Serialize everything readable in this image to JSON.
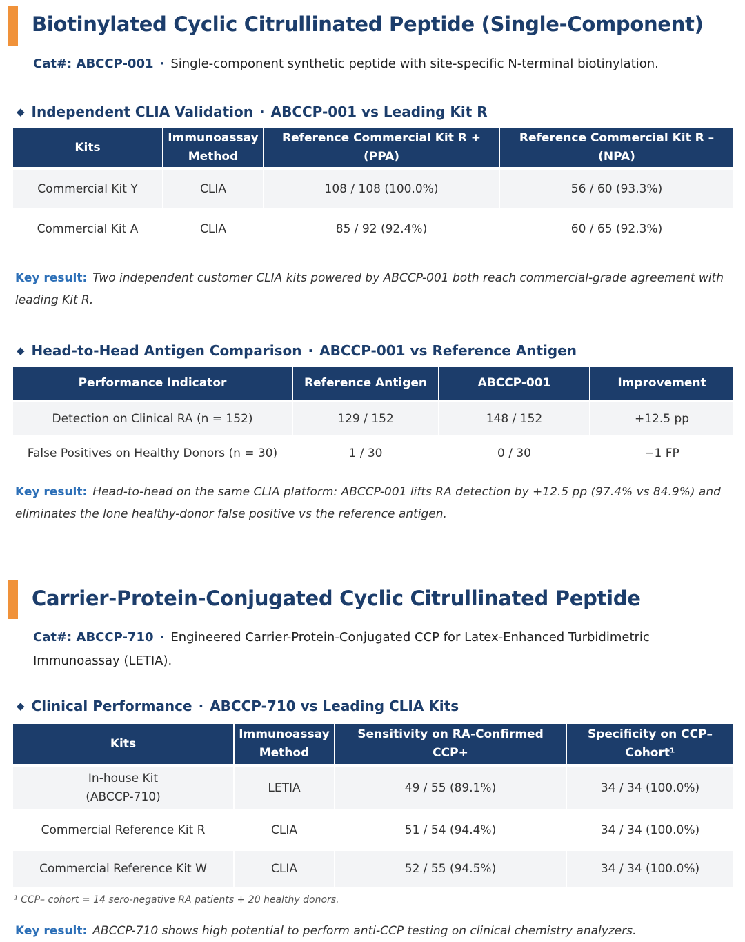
{
  "section1": {
    "title": "Biotinylated Cyclic Citrullinated Peptide (Single-Component)",
    "cat_label": "Cat#: ABCCP-001",
    "cat_desc": "Single-component synthetic peptide with site-specific N-terminal biotinylation.",
    "sep": "·",
    "table1": {
      "heading_a": "Independent CLIA Validation",
      "heading_b": "ABCCP-001 vs Leading Kit R",
      "headers": [
        "Kits",
        "Immunoassay Method",
        "Reference Commercial Kit R + (PPA)",
        "Reference Commercial Kit R – (NPA)"
      ],
      "rows": [
        [
          "Commercial Kit Y",
          "CLIA",
          "108 / 108 (100.0%)",
          "56 / 60 (93.3%)"
        ],
        [
          "Commercial Kit A",
          "CLIA",
          "85 / 92 (92.4%)",
          "60 / 65 (92.3%)"
        ]
      ],
      "key_label": "Key result:",
      "key_text": "Two independent customer CLIA kits powered by ABCCP-001 both reach commercial-grade agreement with leading Kit R."
    },
    "table2": {
      "heading_a": "Head-to-Head Antigen Comparison",
      "heading_b": "ABCCP-001 vs Reference Antigen",
      "headers": [
        "Performance Indicator",
        "Reference Antigen",
        "ABCCP-001",
        "Improvement"
      ],
      "rows": [
        [
          "Detection on Clinical RA (n = 152)",
          "129 / 152",
          "148 / 152",
          "+12.5 pp"
        ],
        [
          "False Positives on Healthy Donors (n = 30)",
          "1 / 30",
          "0 / 30",
          "−1 FP"
        ]
      ],
      "key_label": "Key result:",
      "key_text": "Head-to-head on the same CLIA platform: ABCCP-001 lifts RA detection by +12.5 pp (97.4% vs 84.9%) and eliminates the lone healthy-donor false positive vs the reference antigen."
    }
  },
  "section2": {
    "title": "Carrier-Protein-Conjugated Cyclic Citrullinated Peptide",
    "cat_label": "Cat#: ABCCP-710",
    "cat_desc": "Engineered Carrier-Protein-Conjugated CCP for Latex-Enhanced Turbidimetric Immunoassay (LETIA).",
    "table3": {
      "heading_a": "Clinical Performance",
      "heading_b": "ABCCP-710 vs Leading CLIA Kits",
      "headers": [
        "Kits",
        "Immunoassay Method",
        "Sensitivity on RA-Confirmed CCP+",
        "Specificity on CCP– Cohort¹"
      ],
      "rows": [
        [
          "In-house Kit (ABCCP-710)",
          "LETIA",
          "49 / 55 (89.1%)",
          "34 / 34 (100.0%)"
        ],
        [
          "Commercial Reference Kit R",
          "CLIA",
          "51 / 54 (94.4%)",
          "34 / 34 (100.0%)"
        ],
        [
          "Commercial Reference Kit W",
          "CLIA",
          "52 / 55 (94.5%)",
          "34 / 34 (100.0%)"
        ]
      ],
      "footnote": "¹ CCP– cohort = 14 sero-negative RA patients + 20 healthy donors.",
      "key_label": "Key result:",
      "key_text": "ABCCP-710 shows high potential to perform anti-CCP testing on clinical chemistry analyzers."
    }
  }
}
